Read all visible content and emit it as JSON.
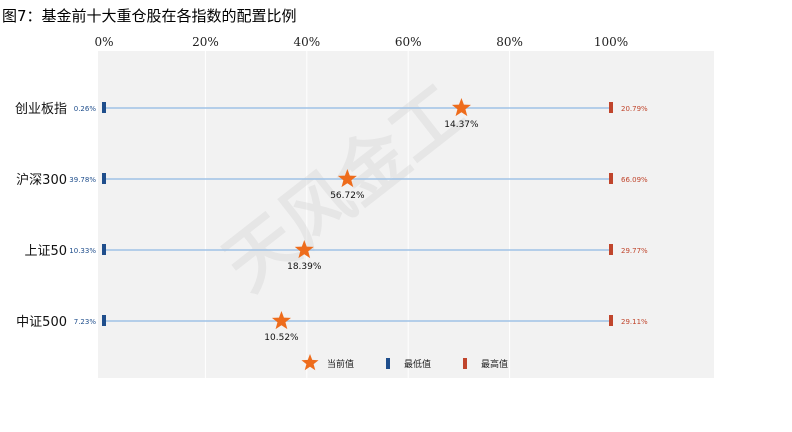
{
  "title": "图7：基金前十大重仓股在各指数的配置比例",
  "watermark": "天风金工",
  "chart_data": {
    "type": "range-dot",
    "xlim": [
      0,
      100
    ],
    "x_ticks": [
      "0%",
      "20%",
      "40%",
      "60%",
      "80%",
      "100%"
    ],
    "categories": [
      "创业板指",
      "沪深300",
      "上证50",
      "中证500"
    ],
    "series": [
      {
        "name": "当前值",
        "values": [
          70.5,
          48.0,
          39.5,
          35.0
        ],
        "labels": [
          "14.37%",
          "56.72%",
          "18.39%",
          "10.52%"
        ]
      },
      {
        "name": "最低值",
        "values": [
          0,
          0,
          0,
          0
        ],
        "labels": [
          "0.26%",
          "39.78%",
          "10.33%",
          "7.23%"
        ]
      },
      {
        "name": "最高值",
        "values": [
          100,
          100,
          100,
          100
        ],
        "labels": [
          "20.79%",
          "66.09%",
          "29.77%",
          "29.11%"
        ]
      }
    ],
    "colors": {
      "current": "#ee6c1c",
      "min": "#1f4e8c",
      "max": "#c0452c",
      "line": "#9fc2e6",
      "plot_bg": "#f2f2f2",
      "grid": "#ffffff"
    },
    "legend_position": "bottom"
  }
}
